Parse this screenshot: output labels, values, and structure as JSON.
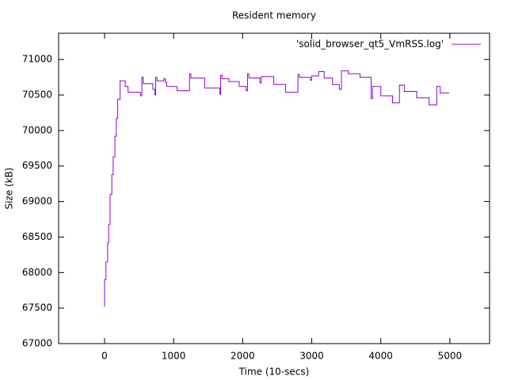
{
  "chart_data": {
    "type": "line",
    "title": "Resident memory",
    "xlabel": "Time (10-secs)",
    "ylabel": "Size (kB)",
    "xlim": [
      -665,
      5575
    ],
    "ylim": [
      67000,
      71370
    ],
    "xticks": [
      0,
      1000,
      2000,
      3000,
      4000,
      5000
    ],
    "yticks": [
      67000,
      67500,
      68000,
      68500,
      69000,
      69500,
      70000,
      70500,
      71000
    ],
    "legend": "top-right",
    "series": [
      {
        "name": "'solid_browser_qt5_VmRSS.log'",
        "color": "#9400d3",
        "x": [
          0,
          0,
          20,
          20,
          45,
          45,
          60,
          60,
          80,
          80,
          105,
          105,
          125,
          125,
          150,
          150,
          170,
          170,
          190,
          190,
          225,
          225,
          300,
          300,
          340,
          340,
          520,
          520,
          540,
          540,
          560,
          560,
          700,
          700,
          730,
          730,
          740,
          740,
          760,
          760,
          860,
          860,
          880,
          880,
          900,
          900,
          1050,
          1050,
          1230,
          1230,
          1250,
          1250,
          1450,
          1450,
          1670,
          1670,
          1680,
          1680,
          1700,
          1700,
          1800,
          1800,
          1950,
          1950,
          2050,
          2050,
          2070,
          2070,
          2090,
          2090,
          2250,
          2250,
          2270,
          2270,
          2450,
          2450,
          2620,
          2620,
          2800,
          2800,
          2820,
          2820,
          2980,
          2980,
          3000,
          3000,
          3100,
          3100,
          3180,
          3180,
          3300,
          3300,
          3400,
          3400,
          3430,
          3430,
          3530,
          3530,
          3700,
          3700,
          3860,
          3860,
          3880,
          3880,
          4000,
          4000,
          4170,
          4170,
          4270,
          4270,
          4340,
          4340,
          4520,
          4520,
          4700,
          4700,
          4810,
          4810,
          4860,
          4860,
          4990
        ],
        "values": [
          67520,
          67900,
          67900,
          68150,
          68150,
          68420,
          68420,
          68680,
          68680,
          69100,
          69100,
          69380,
          69380,
          69630,
          69630,
          69920,
          69920,
          70170,
          70170,
          70440,
          70440,
          70700,
          70700,
          70620,
          70620,
          70540,
          70540,
          70490,
          70490,
          70750,
          70750,
          70660,
          70660,
          70580,
          70580,
          70500,
          70500,
          70750,
          70750,
          70700,
          70700,
          70730,
          70730,
          70680,
          70680,
          70620,
          70620,
          70560,
          70560,
          70800,
          70800,
          70740,
          70740,
          70600,
          70600,
          70510,
          70510,
          70780,
          70780,
          70730,
          70730,
          70690,
          70690,
          70620,
          70620,
          70560,
          70560,
          70800,
          70800,
          70740,
          70740,
          70670,
          70670,
          70760,
          70760,
          70650,
          70650,
          70540,
          70540,
          70790,
          70790,
          70750,
          70750,
          70710,
          70710,
          70770,
          70770,
          70830,
          70830,
          70740,
          70740,
          70650,
          70650,
          70580,
          70580,
          70840,
          70840,
          70800,
          70800,
          70750,
          70750,
          70450,
          70450,
          70620,
          70620,
          70490,
          70490,
          70390,
          70390,
          70640,
          70640,
          70550,
          70550,
          70460,
          70460,
          70360,
          70360,
          70620,
          70620,
          70530,
          70530
        ]
      }
    ]
  }
}
